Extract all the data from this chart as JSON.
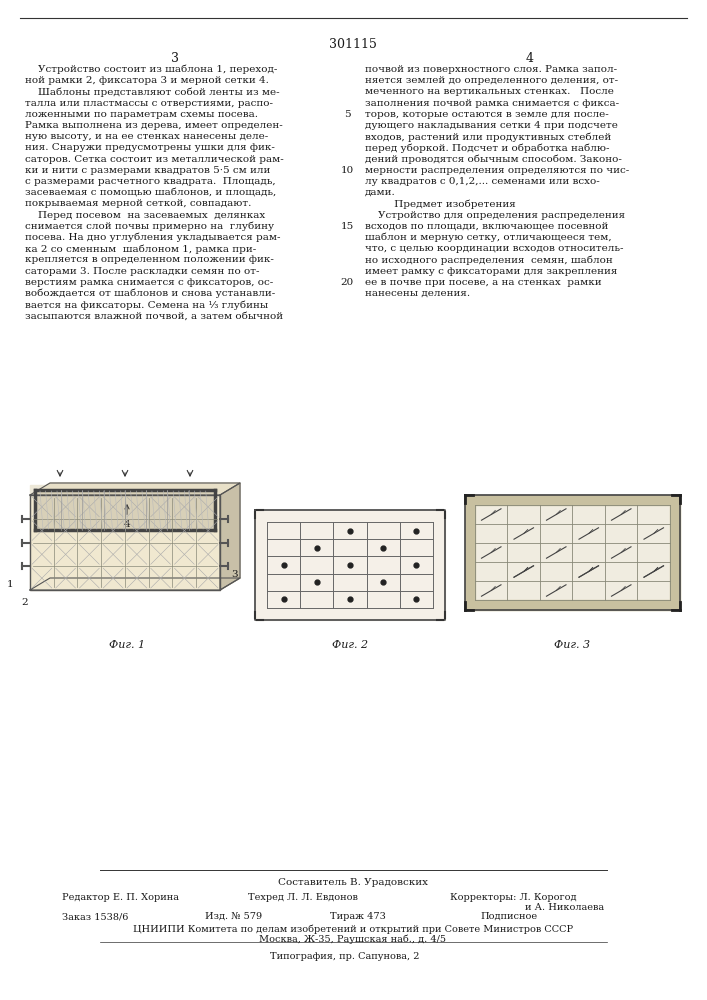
{
  "page_number": "301115",
  "col_left": "3",
  "col_right": "4",
  "text_left": [
    "    Устройство состоит из шаблона 1, переход-",
    "ной рамки 2, фиксатора 3 и мерной сетки 4.",
    "    Шаблоны представляют собой ленты из ме-",
    "талла или пластмассы с отверстиями, распо-",
    "ложенными по параметрам схемы посева.",
    "Рамка выполнена из дерева, имеет определен-",
    "ную высоту, и на ее стенках нанесены деле-",
    "ния. Снаружи предусмотрены ушки для фик-",
    "саторов. Сетка состоит из металлической рам-",
    "ки и нити с размерами квадратов 5·5 см или",
    "с размерами расчетного квадрата.  Площадь,",
    "засеваемая с помощью шаблонов, и площадь,",
    "покрываемая мерной сеткой, совпадают.",
    "    Перед посевом  на засеваемых  делянках",
    "снимается слой почвы примерно на  глубину",
    "посева. На дно углубления укладывается рам-",
    "ка 2 со сменным  шаблоном 1, рамка при-",
    "крепляется в определенном положении фик-",
    "саторами 3. После раскладки семян по от-",
    "верстиям рамка снимается с фиксаторов, ос-",
    "вобождается от шаблонов и снова устанавли-",
    "вается на фиксаторы. Семена на ¹⁄₃ глубины",
    "засыпаются влажной почвой, а затем обычной"
  ],
  "line_numbers_right": [
    "5",
    "10",
    "15",
    "20"
  ],
  "text_right": [
    "почвой из поверхностного слоя. Рамка запол-",
    "няется землей до определенного деления, от-",
    "меченного на вертикальных стенках.   После",
    "заполнения почвой рамка снимается с фикса-",
    "торов, которые остаются в земле для после-",
    "дующего накладывания сетки 4 при подсчете",
    "входов, растений или продуктивных стеблей",
    "перед уборкой. Подсчет и обработка наблю-",
    "дений проводятся обычным способом. Законо-",
    "мерности распределения определяются по чис-",
    "лу квадратов с 0,1,2,... семенами или всхо-",
    "дами.",
    "         Предмет изобретения",
    "    Устройство для определения распределения",
    "всходов по площади, включающее посевной",
    "шаблон и мерную сетку, отличающееся тем,",
    "что, с целью координации всходов относитель-",
    "но исходного распределения  семян, шаблон",
    "имеет рамку с фиксаторами для закрепления",
    "ее в почве при посеве, а на стенках  рамки",
    "нанесены деления."
  ],
  "footer_line1": "Составитель В. Урадовских",
  "footer_editor": "Редактор Е. П. Хорина",
  "footer_tech": "Техред Л. Л. Евдонов",
  "footer_correctors": "Корректоры: Л. Корогод",
  "footer_correctors2": "                        и А. Николаева",
  "footer_order": "Заказ 1538/6",
  "footer_izd": "Изд. № 579",
  "footer_tirazh": "Тираж 473",
  "footer_podpis": "Подписное",
  "footer_cniipii": "ЦНИИПИ Комитета по делам изобретений и открытий при Совете Министров СССР",
  "footer_address": "Москва, Ж-35, Раушская наб., д. 4/5",
  "footer_tipografia": "Типография, пр. Сапунова, 2",
  "bg_color": "#ffffff",
  "text_color": "#1a1a1a",
  "line_color": "#333333"
}
